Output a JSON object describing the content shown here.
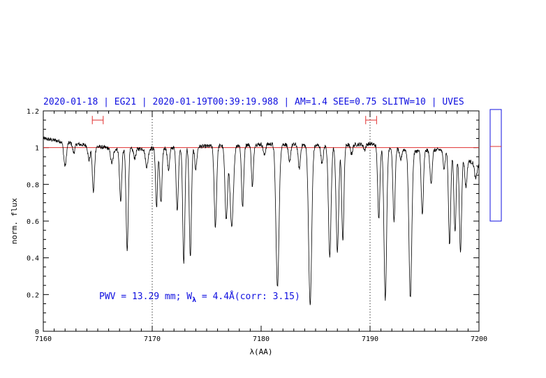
{
  "chart_data": {
    "type": "line",
    "title": "2020-01-18 | EG21 | 2020-01-19T00:39:19.988 | AM=1.4  SEE=0.75  SLITW=10 | UVES",
    "xlabel": "λ(AA)",
    "ylabel": "norm. flux",
    "xlim": [
      7160,
      7200
    ],
    "ylim": [
      0,
      1.2
    ],
    "x_ticks": [
      7160,
      7170,
      7180,
      7190,
      7200
    ],
    "y_ticks": [
      0,
      0.2,
      0.4,
      0.6,
      0.8,
      1,
      1.2
    ],
    "x_tick_labels": [
      "7160",
      "7170",
      "7180",
      "7190",
      "7200"
    ],
    "y_tick_labels": [
      "0",
      "0.2",
      "0.4",
      "0.6",
      "0.8",
      "1",
      "1.2"
    ],
    "annotation": {
      "prefix": "PWV  =  13.29  mm;  W",
      "sub": "λ",
      "suffix": "  =  4.4Å(corr: 3.15)"
    },
    "reference_line": {
      "y": 1.0,
      "color": "#e03030"
    },
    "vertical_markers": [
      7170,
      7190
    ],
    "ranges": [
      {
        "x1": 7164.5,
        "x2": 7165.5,
        "y": 1.15,
        "color": "#e03030"
      },
      {
        "x1": 7189.6,
        "x2": 7190.6,
        "y": 1.15,
        "color": "#e03030"
      }
    ],
    "side_panel": {
      "line_y": 1.0,
      "color": "#1010e0",
      "marker_color": "#e03030"
    },
    "series": [
      {
        "color": "#000000",
        "continuum": [
          [
            7160,
            1.05
          ],
          [
            7163,
            1.02
          ],
          [
            7167,
            0.99
          ],
          [
            7172,
            1.0
          ],
          [
            7176,
            1.01
          ],
          [
            7181,
            1.02
          ],
          [
            7186,
            1.01
          ],
          [
            7190,
            1.02
          ],
          [
            7194,
            0.98
          ],
          [
            7197,
            0.99
          ],
          [
            7200,
            0.9
          ]
        ],
        "lines": [
          [
            7162.0,
            0.13,
            0.12
          ],
          [
            7162.8,
            0.05,
            0.1
          ],
          [
            7164.2,
            0.08,
            0.1
          ],
          [
            7164.6,
            0.25,
            0.1
          ],
          [
            7166.3,
            0.08,
            0.12
          ],
          [
            7167.1,
            0.28,
            0.1
          ],
          [
            7167.7,
            0.55,
            0.1
          ],
          [
            7168.4,
            0.05,
            0.1
          ],
          [
            7169.5,
            0.1,
            0.12
          ],
          [
            7170.4,
            0.32,
            0.09
          ],
          [
            7170.8,
            0.3,
            0.1
          ],
          [
            7171.5,
            0.12,
            0.1
          ],
          [
            7172.3,
            0.34,
            0.1
          ],
          [
            7172.9,
            0.63,
            0.1
          ],
          [
            7173.5,
            0.6,
            0.1
          ],
          [
            7174.0,
            0.12,
            0.1
          ],
          [
            7175.8,
            0.44,
            0.11
          ],
          [
            7176.8,
            0.4,
            0.12
          ],
          [
            7177.3,
            0.45,
            0.15
          ],
          [
            7178.3,
            0.34,
            0.1
          ],
          [
            7179.2,
            0.23,
            0.09
          ],
          [
            7180.3,
            0.06,
            0.1
          ],
          [
            7181.5,
            0.78,
            0.14
          ],
          [
            7182.6,
            0.1,
            0.1
          ],
          [
            7183.5,
            0.13,
            0.1
          ],
          [
            7184.5,
            0.87,
            0.14
          ],
          [
            7185.6,
            0.1,
            0.1
          ],
          [
            7186.3,
            0.6,
            0.12
          ],
          [
            7187.0,
            0.58,
            0.12
          ],
          [
            7187.5,
            0.52,
            0.1
          ],
          [
            7188.3,
            0.05,
            0.1
          ],
          [
            7189.5,
            0.03,
            0.1
          ],
          [
            7190.8,
            0.4,
            0.1
          ],
          [
            7191.4,
            0.83,
            0.12
          ],
          [
            7192.2,
            0.4,
            0.1
          ],
          [
            7192.8,
            0.06,
            0.1
          ],
          [
            7193.7,
            0.8,
            0.13
          ],
          [
            7194.8,
            0.35,
            0.1
          ],
          [
            7195.6,
            0.18,
            0.1
          ],
          [
            7196.8,
            0.1,
            0.1
          ],
          [
            7197.3,
            0.51,
            0.1
          ],
          [
            7197.8,
            0.42,
            0.1
          ],
          [
            7198.3,
            0.52,
            0.1
          ],
          [
            7198.8,
            0.15,
            0.1
          ],
          [
            7199.7,
            0.08,
            0.1
          ]
        ]
      }
    ]
  }
}
